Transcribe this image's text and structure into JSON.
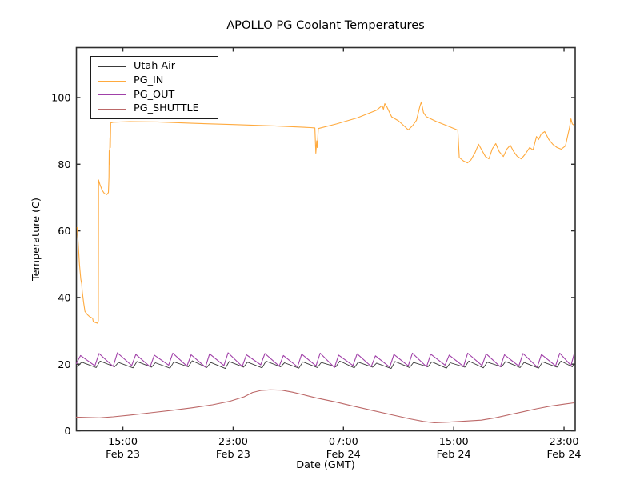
{
  "title": "APOLLO PG Coolant Temperatures",
  "axes": {
    "xlabel": "Date (GMT)",
    "ylabel": "Temperature (C)",
    "x_ticks": [
      {
        "hour": 15,
        "time": "15:00",
        "date": "Feb 23"
      },
      {
        "hour": 23,
        "time": "23:00",
        "date": "Feb 23"
      },
      {
        "hour": 31,
        "time": "07:00",
        "date": "Feb 24"
      },
      {
        "hour": 39,
        "time": "15:00",
        "date": "Feb 24"
      },
      {
        "hour": 47,
        "time": "23:00",
        "date": "Feb 24"
      }
    ],
    "y_ticks": [
      {
        "value": 0,
        "label": "0"
      },
      {
        "value": 20,
        "label": "20"
      },
      {
        "value": 40,
        "label": "40"
      },
      {
        "value": 60,
        "label": "60"
      },
      {
        "value": 80,
        "label": "80"
      },
      {
        "value": 100,
        "label": "100"
      }
    ]
  },
  "legend": {
    "items": [
      {
        "label": "Utah Air"
      },
      {
        "label": "PG_IN"
      },
      {
        "label": "PG_OUT"
      },
      {
        "label": "PG_SHUTTLE"
      }
    ]
  },
  "colors": {
    "background": "#ffffff",
    "spine": "#2e2e2e"
  },
  "chart_data": {
    "type": "line",
    "title": "APOLLO PG Coolant Temperatures",
    "xlabel": "Date (GMT)",
    "ylabel": "Temperature (C)",
    "x_unit": "hours since Feb 23 00:00 GMT",
    "xlim": [
      11.63,
      47.81
    ],
    "ylim": [
      0,
      115
    ],
    "grid": false,
    "legend_position": "upper left",
    "x_tick_hours": [
      15,
      23,
      31,
      39,
      47
    ],
    "x_tick_labels": [
      "15:00 Feb 23",
      "23:00 Feb 23",
      "07:00 Feb 24",
      "15:00 Feb 24",
      "23:00 Feb 24"
    ],
    "y_tick_values": [
      0,
      20,
      40,
      60,
      80,
      100
    ],
    "series": [
      {
        "name": "Utah Air",
        "color": "#3a3a3a",
        "points": [
          [
            11.63,
            19.6
          ],
          [
            11.73,
            19.3
          ],
          [
            12.01,
            20.6
          ],
          [
            13.07,
            19.0
          ],
          [
            13.35,
            20.9
          ],
          [
            14.4,
            19.2
          ],
          [
            14.68,
            20.5
          ],
          [
            15.74,
            18.9
          ],
          [
            16.02,
            20.8
          ],
          [
            17.08,
            19.1
          ],
          [
            17.36,
            20.4
          ],
          [
            18.42,
            18.8
          ],
          [
            18.7,
            20.7
          ],
          [
            19.75,
            19.2
          ],
          [
            20.03,
            21.0
          ],
          [
            21.09,
            19.0
          ],
          [
            21.37,
            20.5
          ],
          [
            22.43,
            18.7
          ],
          [
            22.71,
            20.8
          ],
          [
            23.76,
            19.1
          ],
          [
            24.04,
            20.6
          ],
          [
            25.1,
            18.9
          ],
          [
            25.38,
            20.9
          ],
          [
            26.44,
            19.2
          ],
          [
            26.72,
            20.4
          ],
          [
            27.77,
            18.8
          ],
          [
            28.05,
            20.7
          ],
          [
            29.11,
            19.0
          ],
          [
            29.39,
            20.5
          ],
          [
            30.45,
            19.2
          ],
          [
            30.73,
            20.9
          ],
          [
            31.79,
            18.9
          ],
          [
            32.07,
            20.6
          ],
          [
            33.12,
            19.1
          ],
          [
            33.4,
            20.3
          ],
          [
            34.46,
            18.7
          ],
          [
            34.74,
            20.8
          ],
          [
            35.8,
            19.0
          ],
          [
            36.08,
            20.5
          ],
          [
            37.13,
            19.2
          ],
          [
            37.41,
            20.7
          ],
          [
            38.47,
            18.8
          ],
          [
            38.75,
            20.4
          ],
          [
            39.81,
            19.1
          ],
          [
            40.09,
            20.9
          ],
          [
            41.15,
            18.9
          ],
          [
            41.43,
            20.6
          ],
          [
            42.48,
            19.2
          ],
          [
            42.76,
            20.8
          ],
          [
            43.82,
            19.0
          ],
          [
            44.1,
            20.5
          ],
          [
            45.16,
            18.8
          ],
          [
            45.44,
            20.7
          ],
          [
            46.49,
            19.1
          ],
          [
            46.77,
            20.9
          ],
          [
            47.6,
            19.2
          ],
          [
            47.73,
            20.3
          ]
        ]
      },
      {
        "name": "PG_IN",
        "color": "#ffaa3e",
        "points": [
          [
            11.68,
            61
          ],
          [
            11.75,
            57
          ],
          [
            11.85,
            50
          ],
          [
            11.95,
            45.5
          ],
          [
            12.02,
            44
          ],
          [
            12.05,
            42
          ],
          [
            12.15,
            38.5
          ],
          [
            12.25,
            35.8
          ],
          [
            12.45,
            34.8
          ],
          [
            12.6,
            34.2
          ],
          [
            12.8,
            33.8
          ],
          [
            12.85,
            32.9
          ],
          [
            13.0,
            32.5
          ],
          [
            13.15,
            32.3
          ],
          [
            13.22,
            33.0
          ],
          [
            13.24,
            75.3
          ],
          [
            13.33,
            74.0
          ],
          [
            13.5,
            72.2
          ],
          [
            13.66,
            71.2
          ],
          [
            13.84,
            70.9
          ],
          [
            13.95,
            71.5
          ],
          [
            13.99,
            76.0
          ],
          [
            14.01,
            84.0
          ],
          [
            14.03,
            80.0
          ],
          [
            14.06,
            88.0
          ],
          [
            14.09,
            85.0
          ],
          [
            14.12,
            92.4
          ],
          [
            14.3,
            92.6
          ],
          [
            15.5,
            92.8
          ],
          [
            17.5,
            92.7
          ],
          [
            20.0,
            92.3
          ],
          [
            23.0,
            91.9
          ],
          [
            26.0,
            91.5
          ],
          [
            28.6,
            91.0
          ],
          [
            28.93,
            90.9
          ],
          [
            29.0,
            83.3
          ],
          [
            29.06,
            87.0
          ],
          [
            29.1,
            85.0
          ],
          [
            29.18,
            90.7
          ],
          [
            30.5,
            92.1
          ],
          [
            32.0,
            93.9
          ],
          [
            33.4,
            96.2
          ],
          [
            33.8,
            97.6
          ],
          [
            33.9,
            96.5
          ],
          [
            34.0,
            98.2
          ],
          [
            34.15,
            97.2
          ],
          [
            34.5,
            94.2
          ],
          [
            35.0,
            93.0
          ],
          [
            35.4,
            91.5
          ],
          [
            35.7,
            90.3
          ],
          [
            36.0,
            91.5
          ],
          [
            36.3,
            93.2
          ],
          [
            36.55,
            97.5
          ],
          [
            36.65,
            98.7
          ],
          [
            36.8,
            95.5
          ],
          [
            37.0,
            94.3
          ],
          [
            37.7,
            92.9
          ],
          [
            38.6,
            91.4
          ],
          [
            39.3,
            90.2
          ],
          [
            39.4,
            82.0
          ],
          [
            39.7,
            81.0
          ],
          [
            40.0,
            80.4
          ],
          [
            40.25,
            81.3
          ],
          [
            40.55,
            83.5
          ],
          [
            40.8,
            86.0
          ],
          [
            41.0,
            84.5
          ],
          [
            41.3,
            82.3
          ],
          [
            41.55,
            81.6
          ],
          [
            41.8,
            84.6
          ],
          [
            42.05,
            86.2
          ],
          [
            42.3,
            83.8
          ],
          [
            42.6,
            82.3
          ],
          [
            42.85,
            84.5
          ],
          [
            43.1,
            85.7
          ],
          [
            43.35,
            83.8
          ],
          [
            43.6,
            82.4
          ],
          [
            43.9,
            81.6
          ],
          [
            44.2,
            83.1
          ],
          [
            44.5,
            85.0
          ],
          [
            44.75,
            84.3
          ],
          [
            45.0,
            88.3
          ],
          [
            45.15,
            87.4
          ],
          [
            45.35,
            89.1
          ],
          [
            45.6,
            89.8
          ],
          [
            45.9,
            87.4
          ],
          [
            46.2,
            85.9
          ],
          [
            46.5,
            85.0
          ],
          [
            46.8,
            84.5
          ],
          [
            47.1,
            85.5
          ],
          [
            47.4,
            91.0
          ],
          [
            47.5,
            93.6
          ],
          [
            47.6,
            92.1
          ],
          [
            47.73,
            91.7
          ]
        ]
      },
      {
        "name": "PG_OUT",
        "color": "#a040a8",
        "points": [
          [
            11.63,
            20.2
          ],
          [
            11.93,
            22.6
          ],
          [
            12.97,
            19.5
          ],
          [
            13.27,
            23.2
          ],
          [
            14.3,
            19.3
          ],
          [
            14.6,
            23.4
          ],
          [
            15.64,
            19.6
          ],
          [
            15.94,
            22.9
          ],
          [
            16.98,
            19.2
          ],
          [
            17.28,
            22.7
          ],
          [
            18.32,
            19.7
          ],
          [
            18.62,
            23.3
          ],
          [
            19.65,
            19.4
          ],
          [
            19.95,
            22.8
          ],
          [
            20.99,
            19.1
          ],
          [
            21.29,
            23.1
          ],
          [
            22.33,
            19.6
          ],
          [
            22.63,
            23.4
          ],
          [
            23.66,
            19.3
          ],
          [
            23.96,
            22.8
          ],
          [
            25.0,
            19.8
          ],
          [
            25.3,
            23.2
          ],
          [
            26.34,
            19.4
          ],
          [
            26.64,
            22.6
          ],
          [
            27.67,
            19.2
          ],
          [
            27.97,
            23.0
          ],
          [
            29.01,
            19.5
          ],
          [
            29.31,
            23.3
          ],
          [
            30.35,
            19.0
          ],
          [
            30.65,
            22.7
          ],
          [
            31.69,
            19.6
          ],
          [
            31.99,
            23.1
          ],
          [
            33.02,
            19.3
          ],
          [
            33.32,
            22.5
          ],
          [
            34.36,
            19.1
          ],
          [
            34.66,
            22.9
          ],
          [
            35.7,
            19.5
          ],
          [
            36.0,
            23.3
          ],
          [
            37.03,
            19.2
          ],
          [
            37.33,
            23.0
          ],
          [
            38.37,
            19.7
          ],
          [
            38.67,
            22.7
          ],
          [
            39.71,
            19.3
          ],
          [
            40.01,
            23.3
          ],
          [
            41.05,
            19.6
          ],
          [
            41.35,
            23.1
          ],
          [
            42.38,
            19.2
          ],
          [
            42.68,
            22.8
          ],
          [
            43.72,
            19.4
          ],
          [
            44.02,
            23.2
          ],
          [
            45.06,
            19.1
          ],
          [
            45.36,
            22.9
          ],
          [
            46.39,
            19.5
          ],
          [
            46.69,
            23.3
          ],
          [
            47.5,
            19.6
          ],
          [
            47.73,
            23.0
          ]
        ]
      },
      {
        "name": "PG_SHUTTLE",
        "color": "#bc6868",
        "points": [
          [
            11.63,
            4.1
          ],
          [
            12.3,
            4.0
          ],
          [
            13.3,
            3.9
          ],
          [
            14.3,
            4.2
          ],
          [
            15.5,
            4.7
          ],
          [
            17.0,
            5.4
          ],
          [
            18.5,
            6.1
          ],
          [
            20.0,
            6.9
          ],
          [
            21.5,
            7.8
          ],
          [
            22.8,
            8.9
          ],
          [
            23.8,
            10.2
          ],
          [
            24.4,
            11.5
          ],
          [
            25.0,
            12.1
          ],
          [
            25.7,
            12.3
          ],
          [
            26.5,
            12.2
          ],
          [
            27.3,
            11.6
          ],
          [
            28.2,
            10.7
          ],
          [
            29.0,
            9.9
          ],
          [
            29.8,
            9.2
          ],
          [
            30.5,
            8.6
          ],
          [
            31.5,
            7.6
          ],
          [
            33.0,
            6.2
          ],
          [
            34.5,
            4.8
          ],
          [
            35.8,
            3.6
          ],
          [
            36.8,
            2.8
          ],
          [
            37.6,
            2.4
          ],
          [
            38.6,
            2.6
          ],
          [
            39.8,
            2.9
          ],
          [
            41.0,
            3.2
          ],
          [
            42.0,
            3.9
          ],
          [
            43.0,
            4.8
          ],
          [
            44.0,
            5.7
          ],
          [
            45.0,
            6.6
          ],
          [
            46.0,
            7.4
          ],
          [
            47.0,
            8.0
          ],
          [
            47.73,
            8.4
          ]
        ]
      }
    ]
  }
}
